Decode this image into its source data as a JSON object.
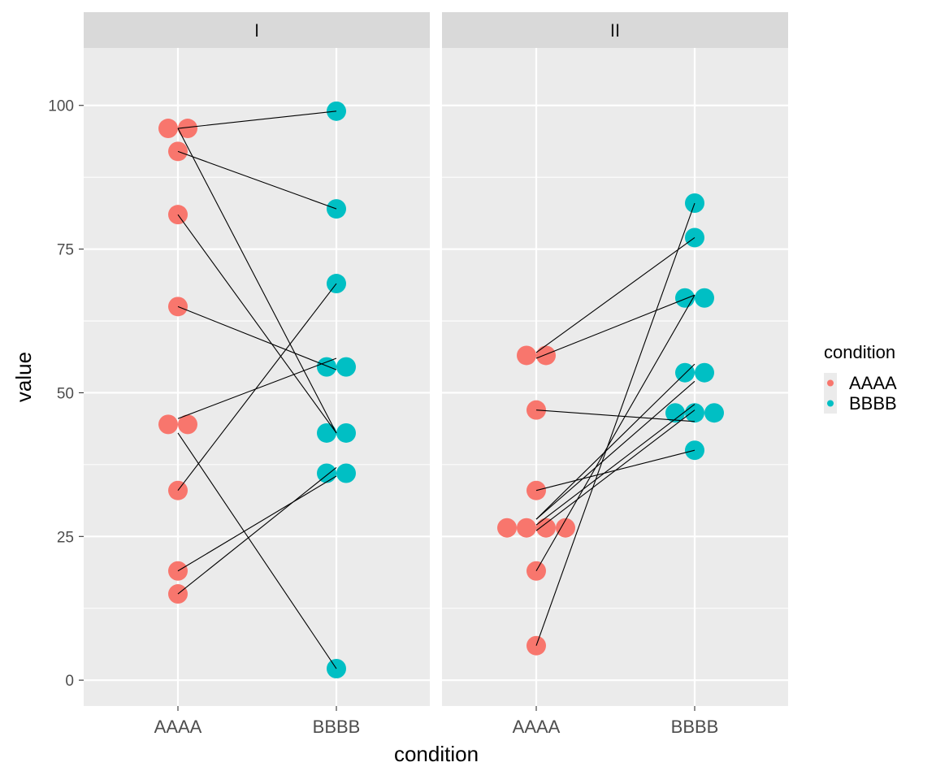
{
  "chart_data": {
    "type": "scatter",
    "title": "",
    "xlabel": "condition",
    "ylabel": "value",
    "categories": [
      "AAAA",
      "BBBB"
    ],
    "ylim": [
      -4.5,
      110
    ],
    "yticks": [
      0,
      25,
      50,
      75,
      100
    ],
    "grid": true,
    "legend": {
      "title": "condition",
      "position": "right",
      "entries": [
        "AAAA",
        "BBBB"
      ]
    },
    "colors": {
      "AAAA": "#F8766D",
      "BBBB": "#00BFC4",
      "panel_bg": "#EBEBEB",
      "strip_bg": "#D9D9D9",
      "line": "#000000"
    },
    "panels": [
      {
        "label": "I",
        "points": {
          "AAAA": [
            96,
            96,
            92,
            81,
            65,
            44.5,
            44.5,
            33,
            19,
            15
          ],
          "BBBB": [
            99,
            82,
            69,
            54.5,
            54.5,
            43,
            43,
            36,
            36,
            2
          ]
        },
        "pairs": [
          [
            96,
            99
          ],
          [
            92,
            82
          ],
          [
            96,
            43
          ],
          [
            81,
            43
          ],
          [
            65,
            54
          ],
          [
            45.5,
            56
          ],
          [
            33,
            69
          ],
          [
            43,
            2
          ],
          [
            19,
            35.5
          ],
          [
            15,
            37
          ]
        ]
      },
      {
        "label": "II",
        "points": {
          "AAAA": [
            56.5,
            56.5,
            47,
            33,
            26.5,
            26.5,
            26.5,
            26.5,
            19,
            6
          ],
          "BBBB": [
            83,
            77,
            66.5,
            66.5,
            53.5,
            53.5,
            46.5,
            46.5,
            46.5,
            40
          ]
        },
        "pairs": [
          [
            57,
            77
          ],
          [
            56,
            67
          ],
          [
            47,
            45
          ],
          [
            33,
            40
          ],
          [
            28,
            55
          ],
          [
            28,
            52
          ],
          [
            27,
            48
          ],
          [
            26,
            47
          ],
          [
            19,
            67
          ],
          [
            6,
            83
          ]
        ]
      }
    ]
  }
}
